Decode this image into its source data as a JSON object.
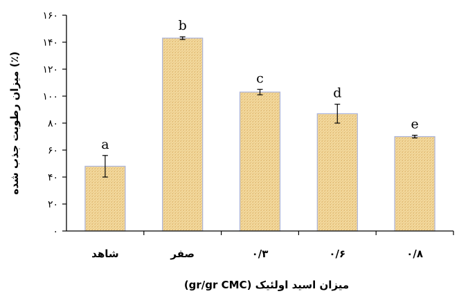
{
  "chart_data": {
    "type": "bar",
    "categories": [
      "شاهد",
      "صفر",
      "۰/۳",
      "۰/۶",
      "۰/۸"
    ],
    "values": [
      48,
      143,
      103,
      87,
      70
    ],
    "errors": [
      8,
      1,
      2,
      7,
      1
    ],
    "significance_letters": [
      "a",
      "b",
      "c",
      "d",
      "e"
    ],
    "ylabel": "میزان رطوبت جذب شده (٪)",
    "xlabel": "میزان اسید اولئیک (gr/gr CMC)",
    "ylim": [
      0,
      160
    ],
    "y_ticks": [
      "۰",
      "۲۰",
      "۴۰",
      "۶۰",
      "۸۰",
      "۱۰۰",
      "۱۲۰",
      "۱۴۰",
      "۱۶۰"
    ],
    "grid": false,
    "legend": "none",
    "colors": {
      "bar_fill": "#f2d89c",
      "bar_fill_alt": "#e6c17c",
      "bar_stroke": "#aab2d8",
      "axis": "#000000"
    }
  }
}
